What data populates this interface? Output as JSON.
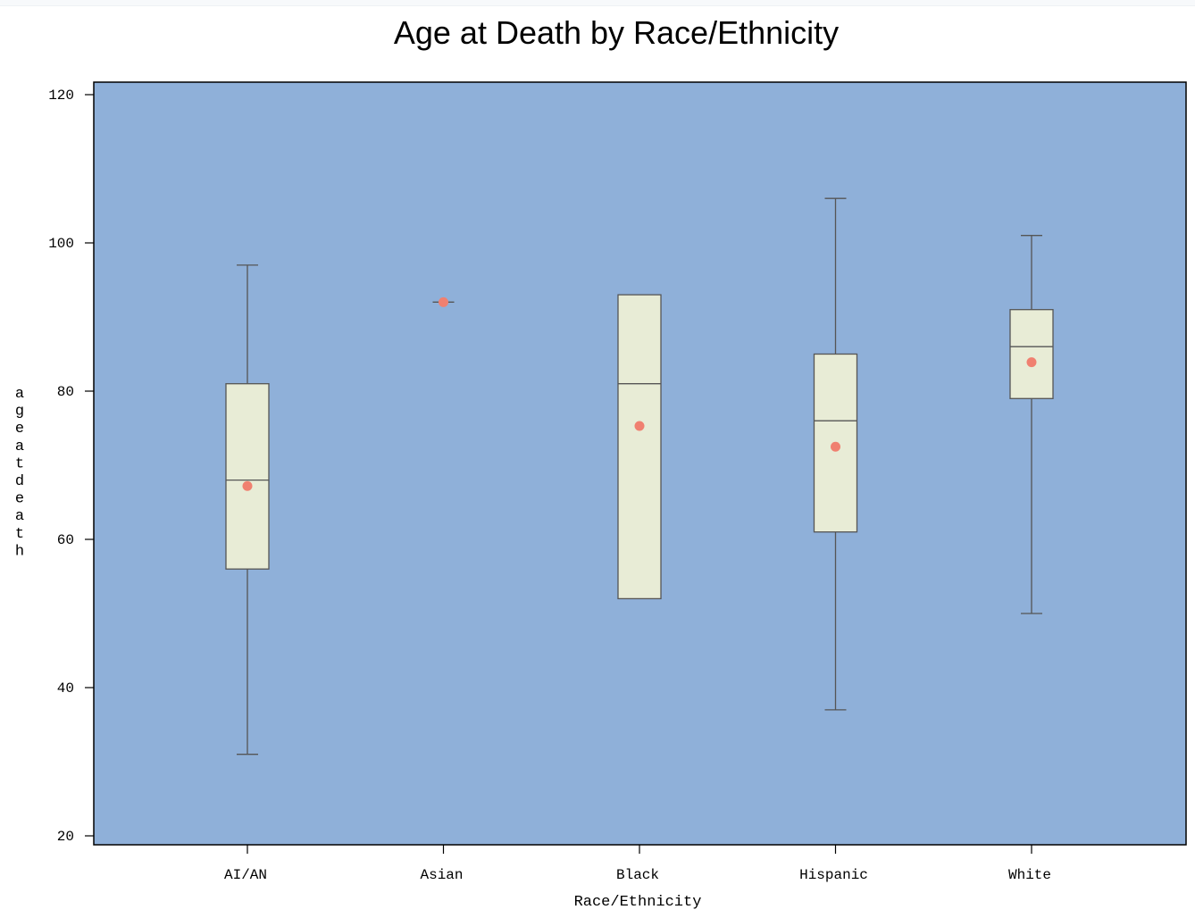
{
  "chart_data": {
    "type": "box",
    "title": "Age at Death by Race/Ethnicity",
    "xlabel": "Race/Ethnicity",
    "ylabel": "ageatdeath",
    "ylim": [
      20,
      120
    ],
    "yticks": [
      20,
      40,
      60,
      80,
      100,
      120
    ],
    "categories": [
      "AI/AN",
      "Asian",
      "Black",
      "Hispanic",
      "White"
    ],
    "boxes": [
      {
        "category": "AI/AN",
        "min": 31,
        "q1": 56,
        "median": 68,
        "q3": 81,
        "max": 97,
        "mean": 67.2
      },
      {
        "category": "Asian",
        "min": 92,
        "q1": 92,
        "median": 92,
        "q3": 92,
        "max": 92,
        "mean": 92
      },
      {
        "category": "Black",
        "min": 52,
        "q1": 52,
        "median": 81,
        "q3": 93,
        "max": 93,
        "mean": 75.3
      },
      {
        "category": "Hispanic",
        "min": 37,
        "q1": 61,
        "median": 76,
        "q3": 85,
        "max": 106,
        "mean": 72.5
      },
      {
        "category": "White",
        "min": 50,
        "q1": 79,
        "median": 86,
        "q3": 91,
        "max": 101,
        "mean": 83.9
      }
    ],
    "grid": false,
    "colors": {
      "plot_background": "#8fb0d9",
      "box_fill": "#e8ecd6",
      "box_stroke": "#555555",
      "mean_marker": "#f08070"
    }
  }
}
